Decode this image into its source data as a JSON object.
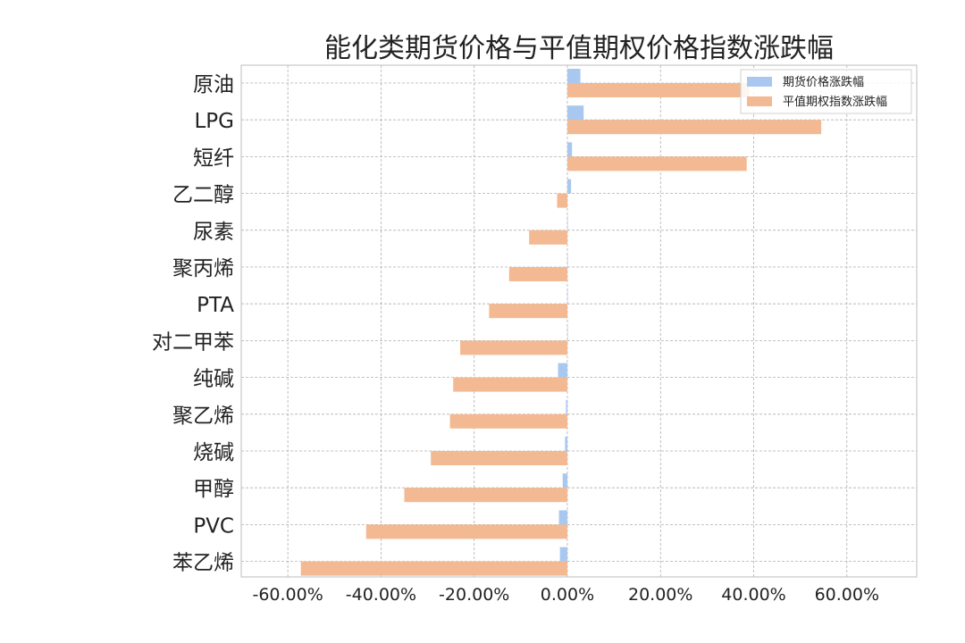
{
  "chart_data": {
    "type": "bar",
    "orientation": "horizontal",
    "title": "能化类期货价格与平值期权价格指数涨跌幅",
    "categories": [
      "原油",
      "LPG",
      "短纤",
      "乙二醇",
      "尿素",
      "聚丙烯",
      "PTA",
      "对二甲苯",
      "纯碱",
      "聚乙烯",
      "烧碱",
      "甲醇",
      "PVC",
      "苯乙烯"
    ],
    "series": [
      {
        "name": "期货价格涨跌幅",
        "color": "#a9c8ef",
        "values": [
          2.8,
          3.5,
          1.0,
          0.8,
          0.0,
          0.0,
          0.0,
          0.0,
          -2.0,
          -0.3,
          -0.5,
          -1.0,
          -1.8,
          -1.6
        ]
      },
      {
        "name": "平值期权指数涨跌幅",
        "color": "#f2b993",
        "values": [
          39.0,
          54.5,
          38.5,
          -2.2,
          -8.2,
          -12.5,
          -16.8,
          -23.0,
          -24.5,
          -25.2,
          -29.3,
          -35.0,
          -43.2,
          -57.2
        ]
      }
    ],
    "xlim": [
      -70,
      75
    ],
    "xticks": [
      -60,
      -40,
      -20,
      0,
      20,
      40,
      60
    ],
    "xtick_labels": [
      "-60.00%",
      "-40.00%",
      "-20.00%",
      "0.00%",
      "20.00%",
      "40.00%",
      "60.00%"
    ],
    "grid": true,
    "legend": "top-right"
  }
}
